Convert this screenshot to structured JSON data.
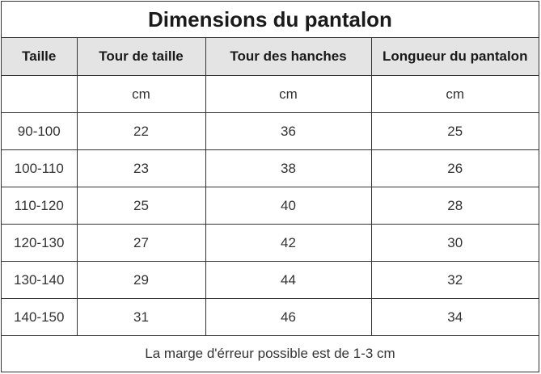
{
  "title": "Dimensions du pantalon",
  "headers": [
    "Taille",
    "Tour de taille",
    "Tour des hanches",
    "Longueur du pantalon"
  ],
  "units": [
    "",
    "cm",
    "cm",
    "cm"
  ],
  "rows": [
    [
      "90-100",
      "22",
      "36",
      "25"
    ],
    [
      "100-110",
      "23",
      "38",
      "26"
    ],
    [
      "110-120",
      "25",
      "40",
      "28"
    ],
    [
      "120-130",
      "27",
      "42",
      "30"
    ],
    [
      "130-140",
      "29",
      "44",
      "32"
    ],
    [
      "140-150",
      "31",
      "46",
      "34"
    ]
  ],
  "footer_note": "La marge d'érreur possible est de 1-3 cm",
  "colors": {
    "header_bg": "#e4e4e4",
    "border": "#333333"
  }
}
